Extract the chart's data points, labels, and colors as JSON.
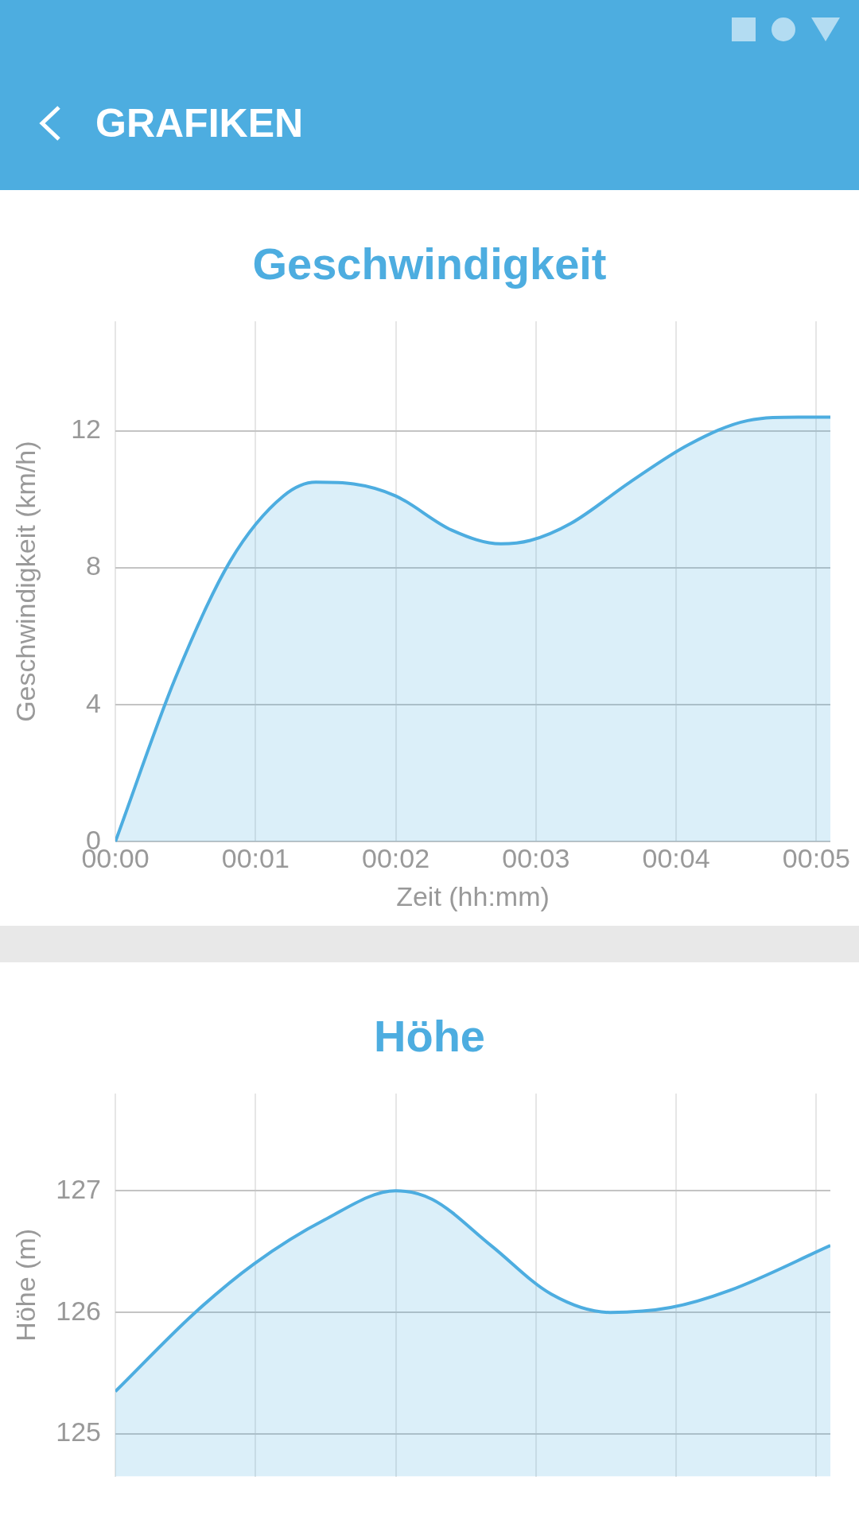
{
  "chart_data": [
    {
      "type": "area",
      "title": "Geschwindigkeit",
      "annotations": [
        "GRAFIKEN"
      ],
      "xlabel": "Zeit (hh:mm)",
      "ylabel": "Geschwindigkeit (km/h)",
      "color": "#4dade0",
      "grid": true,
      "x": [
        0,
        0.43,
        0.82,
        1.2,
        1.43,
        1.7,
        2.0,
        2.4,
        2.75,
        2.96,
        3.25,
        3.67,
        4.09,
        4.51,
        4.87,
        5.1
      ],
      "values": [
        0,
        4.8,
        8.2,
        10.1,
        10.5,
        10.45,
        10.1,
        9.1,
        8.7,
        8.8,
        9.3,
        10.5,
        11.6,
        12.3,
        12.4,
        12.4
      ],
      "xlim": [
        0,
        5.1
      ],
      "xticks": [
        {
          "value": 0,
          "label": "00:00"
        },
        {
          "value": 1,
          "label": "00:01"
        },
        {
          "value": 2,
          "label": "00:02"
        },
        {
          "value": 3,
          "label": "00:03"
        },
        {
          "value": 4,
          "label": "00:04"
        },
        {
          "value": 5,
          "label": "00:05"
        }
      ],
      "ylim": [
        0,
        15.2
      ],
      "yticks": [
        0,
        4,
        8,
        12
      ]
    },
    {
      "type": "area",
      "title": "Höhe",
      "ylabel": "Höhe (m)",
      "color": "#4dade0",
      "grid": true,
      "tick_labels": "y",
      "x": [
        0,
        0.57,
        0.99,
        1.49,
        2.0,
        2.26,
        2.68,
        3.11,
        3.53,
        3.96,
        4.38,
        5.1
      ],
      "values": [
        125.35,
        126.0,
        126.4,
        126.76,
        127.0,
        126.93,
        126.55,
        126.15,
        126.0,
        126.04,
        126.18,
        126.55
      ],
      "xlim": [
        0,
        5.1
      ],
      "xticks": [
        {
          "value": 0,
          "label": null
        },
        {
          "value": 1,
          "label": null
        },
        {
          "value": 2,
          "label": null
        },
        {
          "value": 3,
          "label": null
        },
        {
          "value": 4,
          "label": null
        },
        {
          "value": 5,
          "label": null
        }
      ],
      "ylim": [
        124.65,
        127.8
      ],
      "yticks": [
        125,
        126,
        127
      ]
    }
  ]
}
